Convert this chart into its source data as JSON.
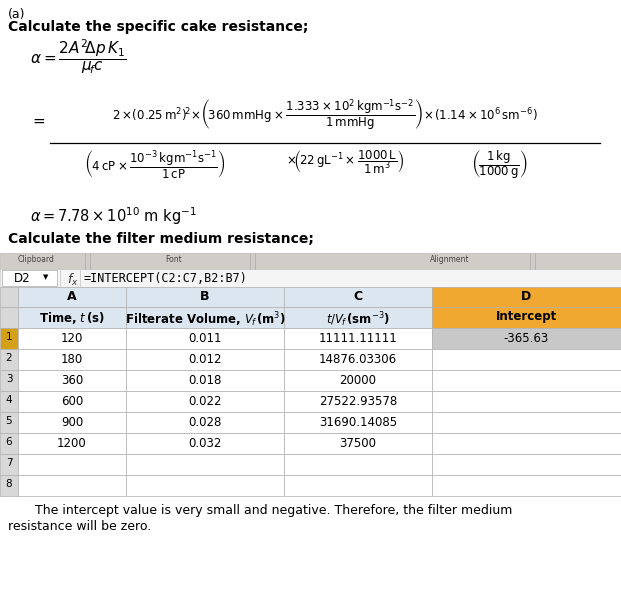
{
  "title_a": "(a)",
  "heading1": "Calculate the specific cake resistance;",
  "heading2": "Calculate the filter medium resistance;",
  "intercept_value": "-365.63",
  "formula_bar_text": "=INTERCEPT(C2:C7,B2:B7)",
  "cell_ref": "D2",
  "table_data": [
    [
      "120",
      "0.011",
      "11111.11111",
      "-365.63"
    ],
    [
      "180",
      "0.012",
      "14876.03306",
      ""
    ],
    [
      "360",
      "0.018",
      "20000",
      ""
    ],
    [
      "600",
      "0.022",
      "27522.93578",
      ""
    ],
    [
      "900",
      "0.028",
      "31690.14085",
      ""
    ],
    [
      "1200",
      "0.032",
      "37500",
      ""
    ]
  ],
  "footnote1": "The intercept value is very small and negative. Therefore, the filter medium",
  "footnote2": "resistance will be zero.",
  "bg_color": "#ffffff",
  "text_color": "#000000",
  "header_bg_abc": "#dce6f1",
  "header_bg_d": "#f0a830",
  "intercept_cell_bg": "#c0c0c0",
  "excel_toolbar_bg": "#d4d0c8",
  "excel_fb_bg": "#efefef",
  "col_header_bg": "#dce6f1",
  "row_num_bg": "#e8e8e8"
}
